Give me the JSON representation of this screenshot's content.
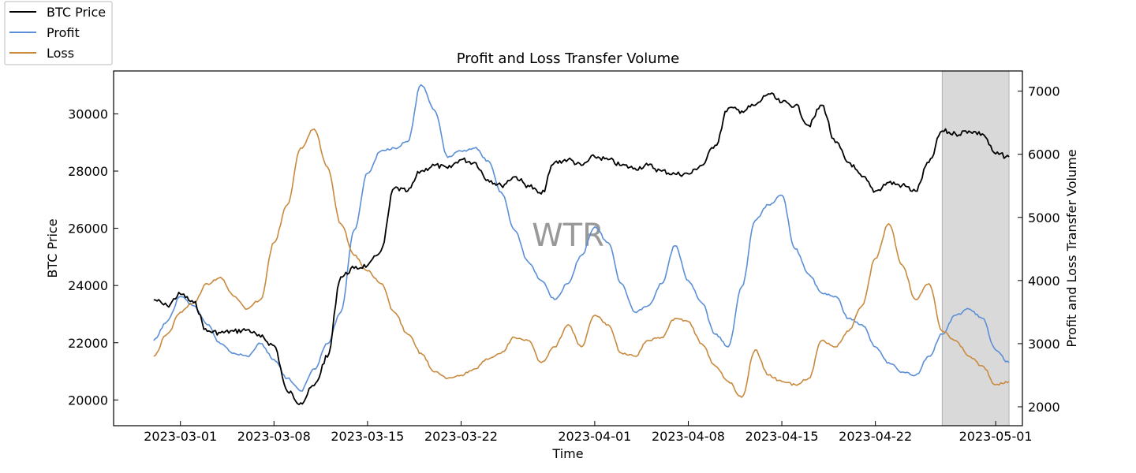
{
  "chart_data": {
    "type": "line",
    "title": "Profit and Loss Transfer Volume",
    "xlabel": "Time",
    "ylabel_left": "BTC Price",
    "ylabel_right": "Profit and Loss Transfer Volume",
    "xlim": [
      "2023-02-24",
      "2023-05-03"
    ],
    "ylim_left": [
      19100,
      31500
    ],
    "ylim_right": [
      1700,
      7320
    ],
    "x_ticks": [
      "2023-03-01",
      "2023-03-08",
      "2023-03-15",
      "2023-03-22",
      "2023-04-01",
      "2023-04-08",
      "2023-04-15",
      "2023-04-22",
      "2023-05-01"
    ],
    "y_ticks_left": [
      "20000",
      "22000",
      "24000",
      "26000",
      "28000",
      "30000"
    ],
    "y_ticks_right": [
      "2000",
      "3000",
      "4000",
      "5000",
      "6000",
      "7000"
    ],
    "highlight_region": {
      "from": "2023-04-27",
      "to": "2023-05-02"
    },
    "legend_position": "top-left",
    "watermark_text": "WTR",
    "series": [
      {
        "name": "BTC Price",
        "axis": "left",
        "color": "#000000",
        "points": [
          [
            "2023-02-27",
            23500
          ],
          [
            "2023-02-28",
            23300
          ],
          [
            "2023-03-01",
            23700
          ],
          [
            "2023-03-02",
            23400
          ],
          [
            "2023-03-03",
            22400
          ],
          [
            "2023-03-04",
            22350
          ],
          [
            "2023-03-05",
            22400
          ],
          [
            "2023-03-06",
            22450
          ],
          [
            "2023-03-07",
            22200
          ],
          [
            "2023-03-08",
            21900
          ],
          [
            "2023-03-09",
            20300
          ],
          [
            "2023-03-10",
            19900
          ],
          [
            "2023-03-11",
            20500
          ],
          [
            "2023-03-12",
            21500
          ],
          [
            "2023-03-13",
            24300
          ],
          [
            "2023-03-14",
            24600
          ],
          [
            "2023-03-15",
            24700
          ],
          [
            "2023-03-16",
            25200
          ],
          [
            "2023-03-17",
            27400
          ],
          [
            "2023-03-18",
            27300
          ],
          [
            "2023-03-19",
            28000
          ],
          [
            "2023-03-20",
            28200
          ],
          [
            "2023-03-21",
            28100
          ],
          [
            "2023-03-22",
            28400
          ],
          [
            "2023-03-23",
            28300
          ],
          [
            "2023-03-24",
            27700
          ],
          [
            "2023-03-25",
            27500
          ],
          [
            "2023-03-26",
            27800
          ],
          [
            "2023-03-27",
            27500
          ],
          [
            "2023-03-28",
            27200
          ],
          [
            "2023-03-29",
            28300
          ],
          [
            "2023-03-30",
            28400
          ],
          [
            "2023-03-31",
            28200
          ],
          [
            "2023-04-01",
            28500
          ],
          [
            "2023-04-02",
            28400
          ],
          [
            "2023-04-03",
            28200
          ],
          [
            "2023-04-04",
            28100
          ],
          [
            "2023-04-05",
            28200
          ],
          [
            "2023-04-06",
            28000
          ],
          [
            "2023-04-07",
            27900
          ],
          [
            "2023-04-08",
            27900
          ],
          [
            "2023-04-09",
            28200
          ],
          [
            "2023-04-10",
            28900
          ],
          [
            "2023-04-11",
            30200
          ],
          [
            "2023-04-12",
            30100
          ],
          [
            "2023-04-13",
            30300
          ],
          [
            "2023-04-14",
            30700
          ],
          [
            "2023-04-15",
            30400
          ],
          [
            "2023-04-16",
            30300
          ],
          [
            "2023-04-17",
            29600
          ],
          [
            "2023-04-18",
            30300
          ],
          [
            "2023-04-19",
            29000
          ],
          [
            "2023-04-20",
            28300
          ],
          [
            "2023-04-21",
            27800
          ],
          [
            "2023-04-22",
            27300
          ],
          [
            "2023-04-23",
            27600
          ],
          [
            "2023-04-24",
            27500
          ],
          [
            "2023-04-25",
            27300
          ],
          [
            "2023-04-26",
            28300
          ],
          [
            "2023-04-27",
            29400
          ],
          [
            "2023-04-28",
            29300
          ],
          [
            "2023-04-29",
            29400
          ],
          [
            "2023-04-30",
            29300
          ],
          [
            "2023-05-01",
            28600
          ],
          [
            "2023-05-02",
            28500
          ]
        ]
      },
      {
        "name": "Profit",
        "axis": "right",
        "color": "#5b8fd6",
        "points": [
          [
            "2023-02-27",
            3050
          ],
          [
            "2023-02-28",
            3350
          ],
          [
            "2023-03-01",
            3750
          ],
          [
            "2023-03-02",
            3600
          ],
          [
            "2023-03-03",
            3300
          ],
          [
            "2023-03-04",
            3000
          ],
          [
            "2023-03-05",
            2850
          ],
          [
            "2023-03-06",
            2800
          ],
          [
            "2023-03-07",
            3000
          ],
          [
            "2023-03-08",
            2750
          ],
          [
            "2023-03-09",
            2450
          ],
          [
            "2023-03-10",
            2250
          ],
          [
            "2023-03-11",
            2600
          ],
          [
            "2023-03-12",
            3000
          ],
          [
            "2023-03-13",
            3500
          ],
          [
            "2023-03-14",
            4800
          ],
          [
            "2023-03-15",
            5700
          ],
          [
            "2023-03-16",
            6050
          ],
          [
            "2023-03-17",
            6100
          ],
          [
            "2023-03-18",
            6200
          ],
          [
            "2023-03-19",
            7100
          ],
          [
            "2023-03-20",
            6700
          ],
          [
            "2023-03-21",
            5950
          ],
          [
            "2023-03-22",
            6050
          ],
          [
            "2023-03-23",
            6100
          ],
          [
            "2023-03-24",
            5900
          ],
          [
            "2023-03-25",
            5400
          ],
          [
            "2023-03-26",
            4800
          ],
          [
            "2023-03-27",
            4300
          ],
          [
            "2023-03-28",
            4000
          ],
          [
            "2023-03-29",
            3700
          ],
          [
            "2023-03-30",
            3950
          ],
          [
            "2023-03-31",
            4400
          ],
          [
            "2023-04-01",
            4850
          ],
          [
            "2023-04-02",
            4600
          ],
          [
            "2023-04-03",
            3950
          ],
          [
            "2023-04-04",
            3500
          ],
          [
            "2023-04-05",
            3600
          ],
          [
            "2023-04-06",
            3950
          ],
          [
            "2023-04-07",
            4550
          ],
          [
            "2023-04-08",
            4000
          ],
          [
            "2023-04-09",
            3650
          ],
          [
            "2023-04-10",
            3150
          ],
          [
            "2023-04-11",
            2950
          ],
          [
            "2023-04-12",
            3900
          ],
          [
            "2023-04-13",
            4950
          ],
          [
            "2023-04-14",
            5200
          ],
          [
            "2023-04-15",
            5350
          ],
          [
            "2023-04-16",
            4500
          ],
          [
            "2023-04-17",
            4100
          ],
          [
            "2023-04-18",
            3800
          ],
          [
            "2023-04-19",
            3750
          ],
          [
            "2023-04-20",
            3400
          ],
          [
            "2023-04-21",
            3300
          ],
          [
            "2023-04-22",
            2950
          ],
          [
            "2023-04-23",
            2700
          ],
          [
            "2023-04-24",
            2550
          ],
          [
            "2023-04-25",
            2500
          ],
          [
            "2023-04-26",
            2800
          ],
          [
            "2023-04-27",
            3150
          ],
          [
            "2023-04-28",
            3450
          ],
          [
            "2023-04-29",
            3550
          ],
          [
            "2023-04-30",
            3400
          ],
          [
            "2023-05-01",
            2900
          ],
          [
            "2023-05-02",
            2700
          ]
        ]
      },
      {
        "name": "Loss",
        "axis": "right",
        "color": "#c98a3e",
        "points": [
          [
            "2023-02-27",
            2800
          ],
          [
            "2023-02-28",
            3150
          ],
          [
            "2023-03-01",
            3500
          ],
          [
            "2023-03-02",
            3650
          ],
          [
            "2023-03-03",
            3950
          ],
          [
            "2023-03-04",
            4050
          ],
          [
            "2023-03-05",
            3750
          ],
          [
            "2023-03-06",
            3550
          ],
          [
            "2023-03-07",
            3700
          ],
          [
            "2023-03-08",
            4600
          ],
          [
            "2023-03-09",
            5200
          ],
          [
            "2023-03-10",
            6100
          ],
          [
            "2023-03-11",
            6400
          ],
          [
            "2023-03-12",
            5800
          ],
          [
            "2023-03-13",
            4900
          ],
          [
            "2023-03-14",
            4400
          ],
          [
            "2023-03-15",
            4150
          ],
          [
            "2023-03-16",
            3950
          ],
          [
            "2023-03-17",
            3500
          ],
          [
            "2023-03-18",
            3150
          ],
          [
            "2023-03-19",
            2850
          ],
          [
            "2023-03-20",
            2550
          ],
          [
            "2023-03-21",
            2450
          ],
          [
            "2023-03-22",
            2500
          ],
          [
            "2023-03-23",
            2600
          ],
          [
            "2023-03-24",
            2750
          ],
          [
            "2023-03-25",
            2850
          ],
          [
            "2023-03-26",
            3100
          ],
          [
            "2023-03-27",
            3050
          ],
          [
            "2023-03-28",
            2700
          ],
          [
            "2023-03-29",
            2950
          ],
          [
            "2023-03-30",
            3300
          ],
          [
            "2023-03-31",
            2950
          ],
          [
            "2023-04-01",
            3450
          ],
          [
            "2023-04-02",
            3300
          ],
          [
            "2023-04-03",
            2850
          ],
          [
            "2023-04-04",
            2800
          ],
          [
            "2023-04-05",
            3050
          ],
          [
            "2023-04-06",
            3100
          ],
          [
            "2023-04-07",
            3400
          ],
          [
            "2023-04-08",
            3350
          ],
          [
            "2023-04-09",
            3000
          ],
          [
            "2023-04-10",
            2650
          ],
          [
            "2023-04-11",
            2400
          ],
          [
            "2023-04-12",
            2150
          ],
          [
            "2023-04-13",
            2900
          ],
          [
            "2023-04-14",
            2500
          ],
          [
            "2023-04-15",
            2400
          ],
          [
            "2023-04-16",
            2350
          ],
          [
            "2023-04-17",
            2450
          ],
          [
            "2023-04-18",
            3050
          ],
          [
            "2023-04-19",
            2950
          ],
          [
            "2023-04-20",
            3200
          ],
          [
            "2023-04-21",
            3600
          ],
          [
            "2023-04-22",
            4350
          ],
          [
            "2023-04-23",
            4900
          ],
          [
            "2023-04-24",
            4250
          ],
          [
            "2023-04-25",
            3700
          ],
          [
            "2023-04-26",
            3950
          ],
          [
            "2023-04-27",
            3200
          ],
          [
            "2023-04-28",
            3050
          ],
          [
            "2023-04-29",
            2800
          ],
          [
            "2023-04-30",
            2650
          ],
          [
            "2023-05-01",
            2350
          ],
          [
            "2023-05-02",
            2400
          ]
        ]
      }
    ]
  }
}
